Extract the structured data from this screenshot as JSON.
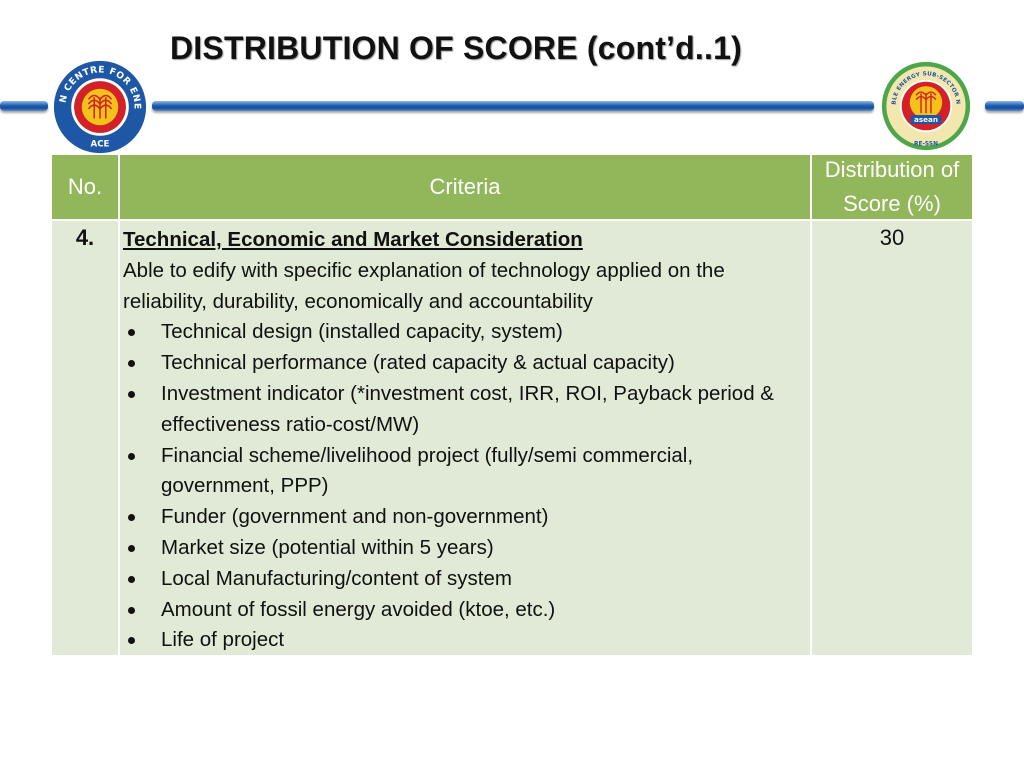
{
  "title": "DISTRIBUTION OF SCORE (cont’d..1)",
  "logos": {
    "left_ring": "ASEAN CENTRE FOR ENERGY",
    "left_label": "ACE",
    "right_ring": "RENEWABLE ENERGY SUB-SECTOR NETWORK",
    "right_inner": "asean",
    "right_label": "RE-SSN"
  },
  "colors": {
    "header_fill": "#92b75b",
    "body_fill": "#e1ead6",
    "bar_blue": "#1f5fb0"
  },
  "table": {
    "headers": [
      "No.",
      "Criteria",
      "Distribution of Score (%)"
    ],
    "row": {
      "no": "4.",
      "heading": "Technical, Economic and Market Consideration",
      "description": "Able to edify with specific explanation of technology applied on the reliability, durability, economically and accountability",
      "bullets": [
        "Technical design (installed capacity, system)",
        "Technical performance (rated capacity & actual capacity)",
        "Investment indicator (*investment cost, IRR, ROI, Payback period & effectiveness ratio-cost/MW)",
        "Financial scheme/livelihood project (fully/semi commercial, government, PPP)",
        "Funder (government and non-government)",
        "Market size (potential within 5 years)",
        "Local Manufacturing/content of system",
        "Amount of fossil energy avoided (ktoe, etc.)",
        "Life of project"
      ],
      "score": "30"
    }
  }
}
